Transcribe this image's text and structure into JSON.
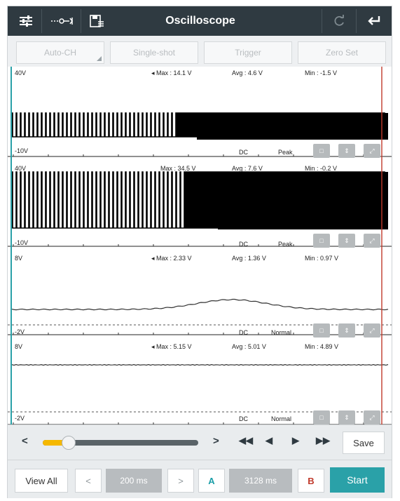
{
  "app": {
    "title": "Oscilloscope"
  },
  "toolbar": {
    "buttons": [
      "Auto-CH",
      "Single-shot",
      "Trigger",
      "Zero Set"
    ],
    "icons": [
      "settings-sliders-icon",
      "channel-switch-icon",
      "save-file-icon",
      "refresh-icon",
      "back-arrow-icon"
    ]
  },
  "channels": [
    {
      "top": "40V",
      "bottom": "-10V",
      "max": "Max : 14.1 V",
      "avg": "Avg : 4.6 V",
      "min": "Min : -1.5 V",
      "coupling": "DC",
      "mode": "Peak"
    },
    {
      "top": "40V",
      "bottom": "-10V",
      "max": "Max : 34.5 V",
      "avg": "Avg : 7.6 V",
      "min": "Min : -0.2 V",
      "coupling": "DC",
      "mode": "Peak"
    },
    {
      "top": "8V",
      "bottom": "-2V",
      "max": "Max : 2.33 V",
      "avg": "Avg : 1.36 V",
      "min": "Min : 0.97 V",
      "coupling": "DC",
      "mode": "Normal"
    },
    {
      "top": "8V",
      "bottom": "-2V",
      "max": "Max : 5.15 V",
      "avg": "Avg : 5.01 V",
      "min": "Min : 4.89 V",
      "coupling": "DC",
      "mode": "Normal"
    }
  ],
  "playback": {
    "prev": "<",
    "next": ">",
    "rewind_fast": "◀◀",
    "rewind": "◀",
    "forward": "▶",
    "forward_fast": "▶▶",
    "save": "Save",
    "slider_position": 0.12
  },
  "footer": {
    "view_all": "View All",
    "timebase_prev": "<",
    "timebase": "200 ms",
    "timebase_next": ">",
    "cursor_a": "A",
    "cursor_delta": "3128 ms",
    "cursor_b": "B",
    "start": "Start"
  },
  "colors": {
    "topbar": "#2f3a41",
    "accent_teal": "#2aa1a8",
    "cursor_red": "#c0392b",
    "slider_yellow": "#f5b800",
    "cursor_b_text": "#c0392b",
    "cursor_a_text": "#1a9ea8"
  }
}
